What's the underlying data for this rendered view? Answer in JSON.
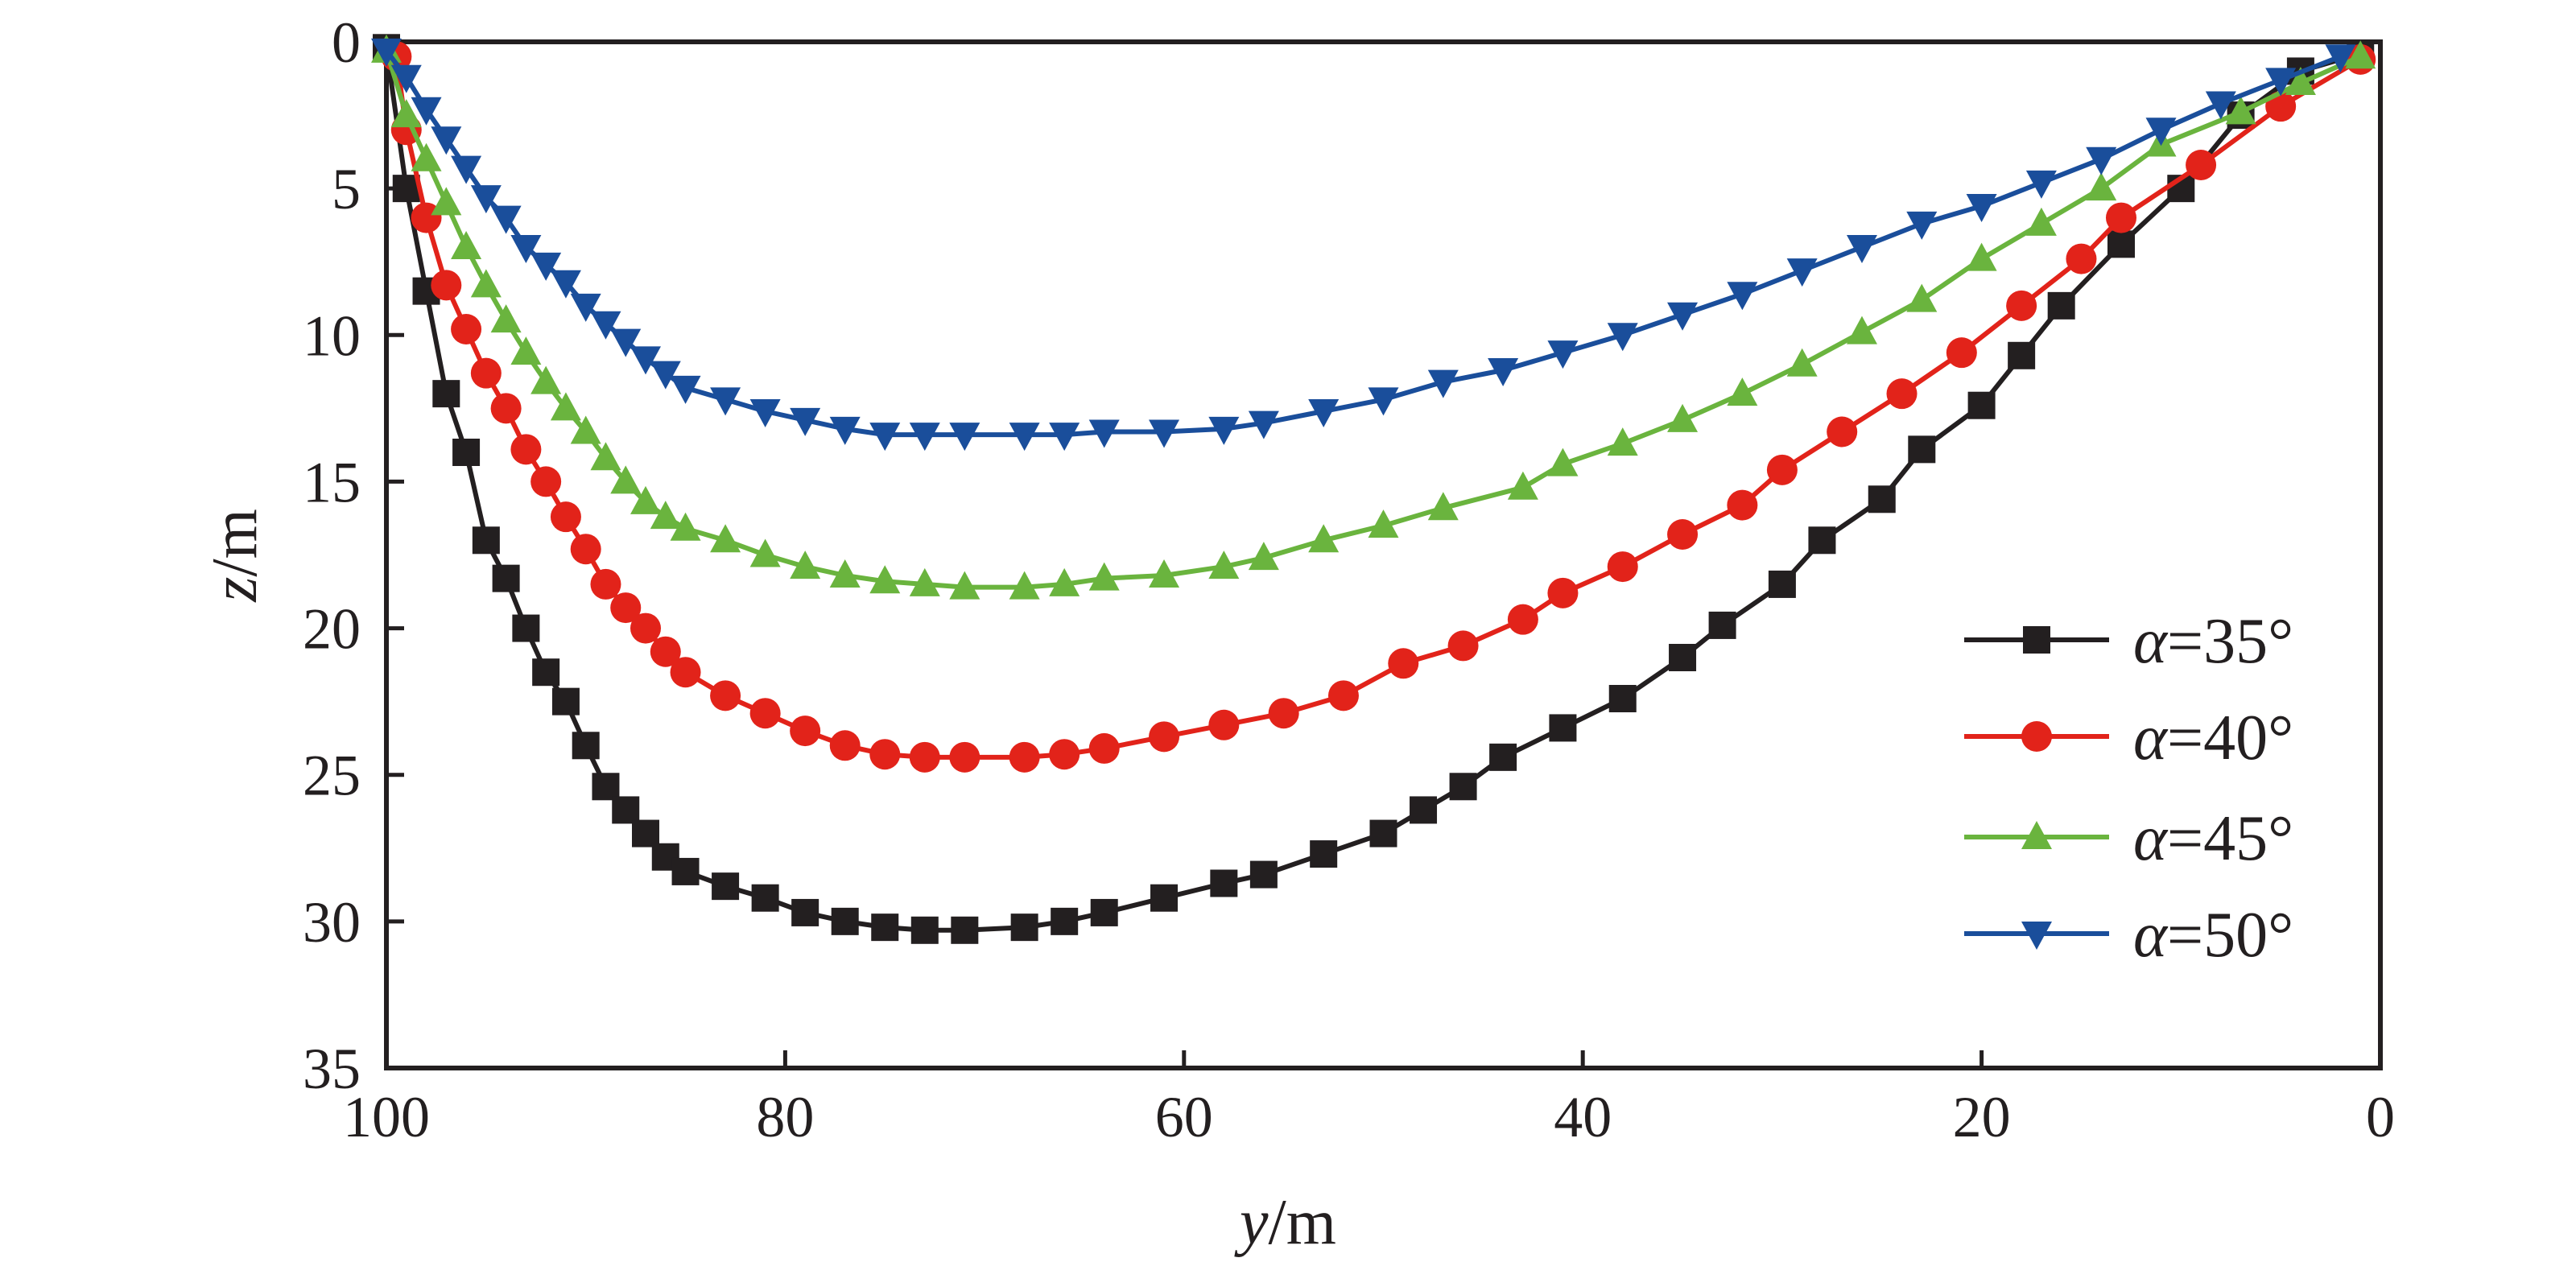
{
  "chart_data": {
    "type": "line",
    "xlabel": {
      "var": "y",
      "unit": "/m"
    },
    "ylabel": {
      "var": "z",
      "unit": "/m"
    },
    "x_ticks": [
      "100",
      "80",
      "60",
      "40",
      "20",
      "0"
    ],
    "y_ticks": [
      "0",
      "5",
      "10",
      "15",
      "20",
      "25",
      "30",
      "35"
    ],
    "x_range": [
      100,
      0
    ],
    "y_range": [
      0,
      35
    ],
    "y_inverted": true,
    "grid": false,
    "legend_position": "bottom-right",
    "series": [
      {
        "name": "α=35°",
        "legend_symbol": "α",
        "legend_value": "=35°",
        "color": "#231f20",
        "marker": "square",
        "points": [
          [
            100,
            0.2
          ],
          [
            99,
            5.0
          ],
          [
            98,
            8.5
          ],
          [
            97,
            12.0
          ],
          [
            96,
            14.0
          ],
          [
            95,
            17.0
          ],
          [
            94,
            18.3
          ],
          [
            93,
            20.0
          ],
          [
            92,
            21.5
          ],
          [
            91,
            22.5
          ],
          [
            90,
            24.0
          ],
          [
            89,
            25.4
          ],
          [
            88,
            26.2
          ],
          [
            87,
            27.0
          ],
          [
            86,
            27.8
          ],
          [
            85,
            28.3
          ],
          [
            83,
            28.8
          ],
          [
            81,
            29.2
          ],
          [
            79,
            29.7
          ],
          [
            77,
            30.0
          ],
          [
            75,
            30.2
          ],
          [
            73,
            30.3
          ],
          [
            71,
            30.3
          ],
          [
            68,
            30.2
          ],
          [
            66,
            30.0
          ],
          [
            64,
            29.7
          ],
          [
            61,
            29.2
          ],
          [
            58,
            28.7
          ],
          [
            56,
            28.4
          ],
          [
            53,
            27.7
          ],
          [
            50,
            27.0
          ],
          [
            48,
            26.2
          ],
          [
            46,
            25.4
          ],
          [
            44,
            24.4
          ],
          [
            41,
            23.4
          ],
          [
            38,
            22.4
          ],
          [
            35,
            21.0
          ],
          [
            33,
            19.9
          ],
          [
            30,
            18.5
          ],
          [
            28,
            17.0
          ],
          [
            25,
            15.6
          ],
          [
            23,
            13.9
          ],
          [
            20,
            12.4
          ],
          [
            18,
            10.7
          ],
          [
            16,
            9.0
          ],
          [
            13,
            6.9
          ],
          [
            10,
            5.0
          ],
          [
            7,
            2.5
          ],
          [
            4,
            1.0
          ],
          [
            1,
            0.4
          ]
        ]
      },
      {
        "name": "α=40°",
        "legend_symbol": "α",
        "legend_value": "=40°",
        "color": "#e2231a",
        "marker": "circle",
        "points": [
          [
            99.5,
            0.5
          ],
          [
            99,
            3.0
          ],
          [
            98,
            6.0
          ],
          [
            97,
            8.3
          ],
          [
            96,
            9.8
          ],
          [
            95,
            11.3
          ],
          [
            94,
            12.5
          ],
          [
            93,
            13.9
          ],
          [
            92,
            15.0
          ],
          [
            91,
            16.2
          ],
          [
            90,
            17.3
          ],
          [
            89,
            18.5
          ],
          [
            88,
            19.3
          ],
          [
            87,
            20.0
          ],
          [
            86,
            20.8
          ],
          [
            85,
            21.5
          ],
          [
            83,
            22.3
          ],
          [
            81,
            22.9
          ],
          [
            79,
            23.5
          ],
          [
            77,
            24.0
          ],
          [
            75,
            24.3
          ],
          [
            73,
            24.4
          ],
          [
            71,
            24.4
          ],
          [
            68,
            24.4
          ],
          [
            66,
            24.3
          ],
          [
            64,
            24.1
          ],
          [
            61,
            23.7
          ],
          [
            58,
            23.3
          ],
          [
            55,
            22.9
          ],
          [
            52,
            22.3
          ],
          [
            49,
            21.2
          ],
          [
            46,
            20.6
          ],
          [
            43,
            19.7
          ],
          [
            41,
            18.8
          ],
          [
            38,
            17.9
          ],
          [
            35,
            16.8
          ],
          [
            32,
            15.8
          ],
          [
            30,
            14.6
          ],
          [
            27,
            13.3
          ],
          [
            24,
            12.0
          ],
          [
            21,
            10.6
          ],
          [
            18,
            9.0
          ],
          [
            15,
            7.4
          ],
          [
            13,
            6.0
          ],
          [
            9,
            4.2
          ],
          [
            5,
            2.2
          ],
          [
            1,
            0.6
          ]
        ]
      },
      {
        "name": "α=45°",
        "legend_symbol": "α",
        "legend_value": "=45°",
        "color": "#6ab43e",
        "marker": "triangle-up",
        "points": [
          [
            100,
            0.3
          ],
          [
            99,
            2.5
          ],
          [
            98,
            4.0
          ],
          [
            97,
            5.5
          ],
          [
            96,
            7.0
          ],
          [
            95,
            8.3
          ],
          [
            94,
            9.5
          ],
          [
            93,
            10.6
          ],
          [
            92,
            11.6
          ],
          [
            91,
            12.5
          ],
          [
            90,
            13.3
          ],
          [
            89,
            14.2
          ],
          [
            88,
            15.0
          ],
          [
            87,
            15.7
          ],
          [
            86,
            16.2
          ],
          [
            85,
            16.6
          ],
          [
            83,
            17.0
          ],
          [
            81,
            17.5
          ],
          [
            79,
            17.9
          ],
          [
            77,
            18.2
          ],
          [
            75,
            18.4
          ],
          [
            73,
            18.5
          ],
          [
            71,
            18.6
          ],
          [
            68,
            18.6
          ],
          [
            66,
            18.5
          ],
          [
            64,
            18.3
          ],
          [
            61,
            18.2
          ],
          [
            58,
            17.9
          ],
          [
            56,
            17.6
          ],
          [
            53,
            17.0
          ],
          [
            50,
            16.5
          ],
          [
            47,
            15.9
          ],
          [
            43,
            15.2
          ],
          [
            41,
            14.4
          ],
          [
            38,
            13.7
          ],
          [
            35,
            12.9
          ],
          [
            32,
            12.0
          ],
          [
            29,
            11.0
          ],
          [
            26,
            9.9
          ],
          [
            23,
            8.8
          ],
          [
            20,
            7.4
          ],
          [
            17,
            6.2
          ],
          [
            14,
            5.0
          ],
          [
            11,
            3.5
          ],
          [
            7,
            2.4
          ],
          [
            4,
            1.4
          ],
          [
            1,
            0.5
          ]
        ]
      },
      {
        "name": "α=50°",
        "legend_symbol": "α",
        "legend_value": "=50°",
        "color": "#1a4e9b",
        "marker": "triangle-down",
        "points": [
          [
            100,
            0.3
          ],
          [
            99,
            1.2
          ],
          [
            98,
            2.3
          ],
          [
            97,
            3.3
          ],
          [
            96,
            4.3
          ],
          [
            95,
            5.3
          ],
          [
            94,
            6.0
          ],
          [
            93,
            7.0
          ],
          [
            92,
            7.6
          ],
          [
            91,
            8.2
          ],
          [
            90,
            9.0
          ],
          [
            89,
            9.6
          ],
          [
            88,
            10.2
          ],
          [
            87,
            10.8
          ],
          [
            86,
            11.3
          ],
          [
            85,
            11.8
          ],
          [
            83,
            12.2
          ],
          [
            81,
            12.6
          ],
          [
            79,
            12.9
          ],
          [
            77,
            13.2
          ],
          [
            75,
            13.4
          ],
          [
            73,
            13.4
          ],
          [
            71,
            13.4
          ],
          [
            68,
            13.4
          ],
          [
            66,
            13.4
          ],
          [
            64,
            13.3
          ],
          [
            61,
            13.3
          ],
          [
            58,
            13.2
          ],
          [
            56,
            13.0
          ],
          [
            53,
            12.6
          ],
          [
            50,
            12.2
          ],
          [
            47,
            11.6
          ],
          [
            44,
            11.2
          ],
          [
            41,
            10.6
          ],
          [
            38,
            10.0
          ],
          [
            35,
            9.3
          ],
          [
            32,
            8.6
          ],
          [
            29,
            7.8
          ],
          [
            26,
            7.0
          ],
          [
            23,
            6.2
          ],
          [
            20,
            5.6
          ],
          [
            17,
            4.8
          ],
          [
            14,
            4.0
          ],
          [
            11,
            3.0
          ],
          [
            8,
            2.1
          ],
          [
            5,
            1.3
          ],
          [
            2,
            0.5
          ]
        ]
      }
    ]
  }
}
